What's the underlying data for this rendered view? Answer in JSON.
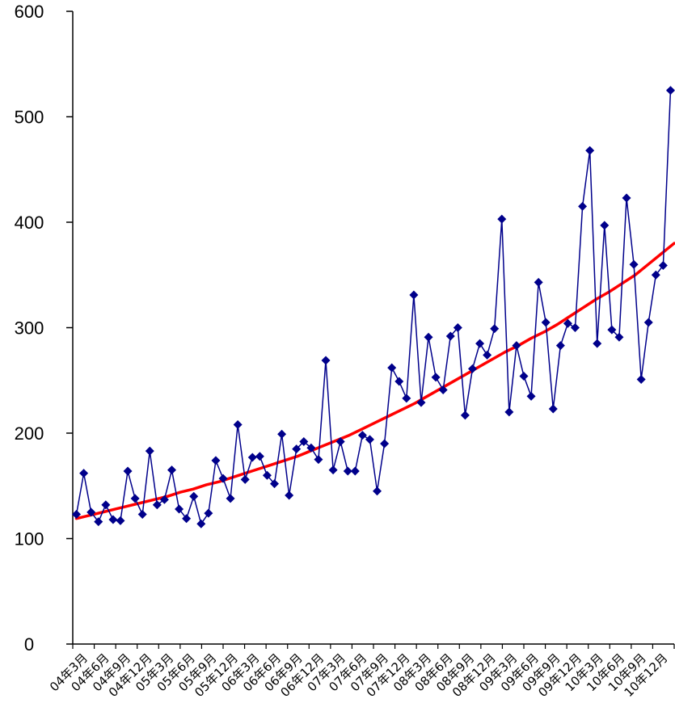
{
  "chart_data": {
    "type": "line",
    "x_tick_labels": [
      "04年3月",
      "04年6月",
      "04年9月",
      "04年12月",
      "05年3月",
      "05年6月",
      "05年9月",
      "05年12月",
      "06年3月",
      "06年6月",
      "06年9月",
      "06年12月",
      "07年3月",
      "07年6月",
      "07年9月",
      "07年12月",
      "08年3月",
      "08年6月",
      "08年9月",
      "08年12月",
      "09年3月",
      "09年6月",
      "09年9月",
      "09年12月",
      "10年3月",
      "10年6月",
      "10年9月",
      "10年12月"
    ],
    "y_ticks": [
      0,
      100,
      200,
      300,
      400,
      500,
      600
    ],
    "ylim": [
      0,
      600
    ],
    "series": [
      {
        "style": "line-with-diamond-markers",
        "color": "#00008B",
        "values": [
          123,
          162,
          125,
          116,
          132,
          118,
          117,
          164,
          138,
          123,
          183,
          132,
          137,
          165,
          128,
          119,
          140,
          114,
          124,
          174,
          157,
          138,
          208,
          156,
          177,
          178,
          160,
          152,
          199,
          141,
          185,
          192,
          186,
          175,
          269,
          165,
          192,
          164,
          164,
          198,
          194,
          145,
          190,
          262,
          249,
          233,
          331,
          229,
          291,
          253,
          241,
          292,
          300,
          217,
          261,
          285,
          274,
          299,
          403,
          220,
          283,
          254,
          235,
          343,
          305,
          223,
          283,
          304,
          300,
          415,
          468,
          285,
          397,
          298,
          291,
          423,
          360,
          251,
          305,
          350,
          359,
          525
        ]
      },
      {
        "style": "smooth-trend-line",
        "color": "#FF0000",
        "values": [
          119,
          122,
          125,
          128,
          131,
          134,
          137,
          140,
          144,
          147,
          151,
          154,
          158,
          162,
          166,
          170,
          174,
          178,
          183,
          188,
          193,
          198,
          204,
          210,
          216,
          222,
          228,
          235,
          242,
          249,
          256,
          263,
          270,
          277,
          283,
          290,
          296,
          303,
          311,
          319,
          327,
          334,
          342,
          350,
          360,
          370,
          380
        ]
      }
    ]
  }
}
